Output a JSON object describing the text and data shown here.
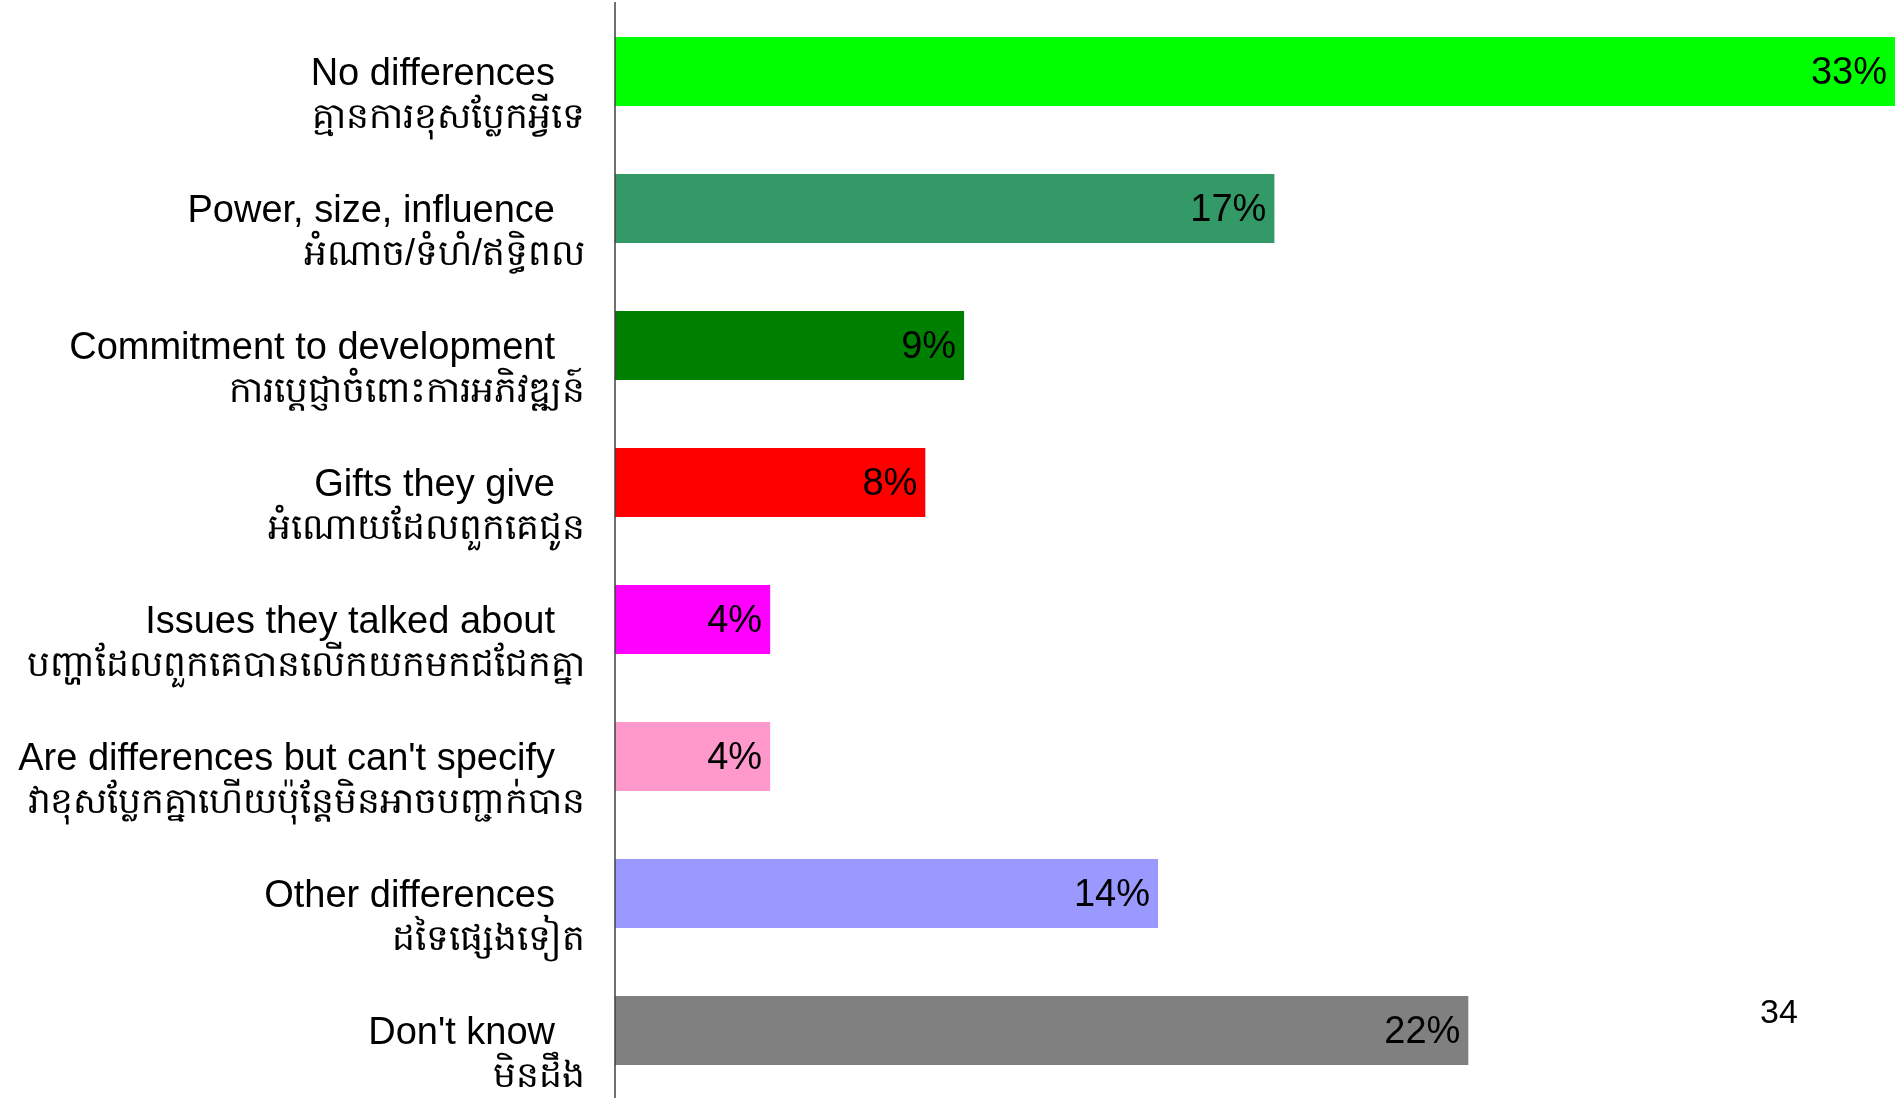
{
  "chart_data": {
    "type": "bar",
    "orientation": "horizontal",
    "categories": [
      "No differences\nគ្មានការខុសប្លែកអ្វីទេ",
      "Power, size, influence\nអំណាច/ទំហំ/ឥទ្ធិពល",
      "Commitment to development\nការប្តេជ្ញាចំពោះការអភិវឌ្ឍន៍",
      "Gifts they give\nអំណោយដែលពួកគេជូន",
      "Issues they talked about\nបញ្ហាដែលពួកគេបានលើកយកមកជជែកគ្នា",
      "Are differences but can't specify\nវាខុសប្លែកគ្នាហើយប៉ុន្តែមិនអាចបញ្ជាក់បាន",
      "Other differences\nដទៃផ្សេងទៀត",
      "Don't know\nមិនដឹង"
    ],
    "values": [
      33,
      17,
      9,
      8,
      4,
      4,
      14,
      22
    ],
    "colors": [
      "#00ff00",
      "#339966",
      "#008000",
      "#ff0000",
      "#ff00ff",
      "#ff99cc",
      "#9999ff",
      "#808080"
    ],
    "value_labels": [
      "33%",
      "17%",
      "9%",
      "8%",
      "4%",
      "4%",
      "14%",
      "22%"
    ],
    "annotations": [
      "34"
    ]
  }
}
